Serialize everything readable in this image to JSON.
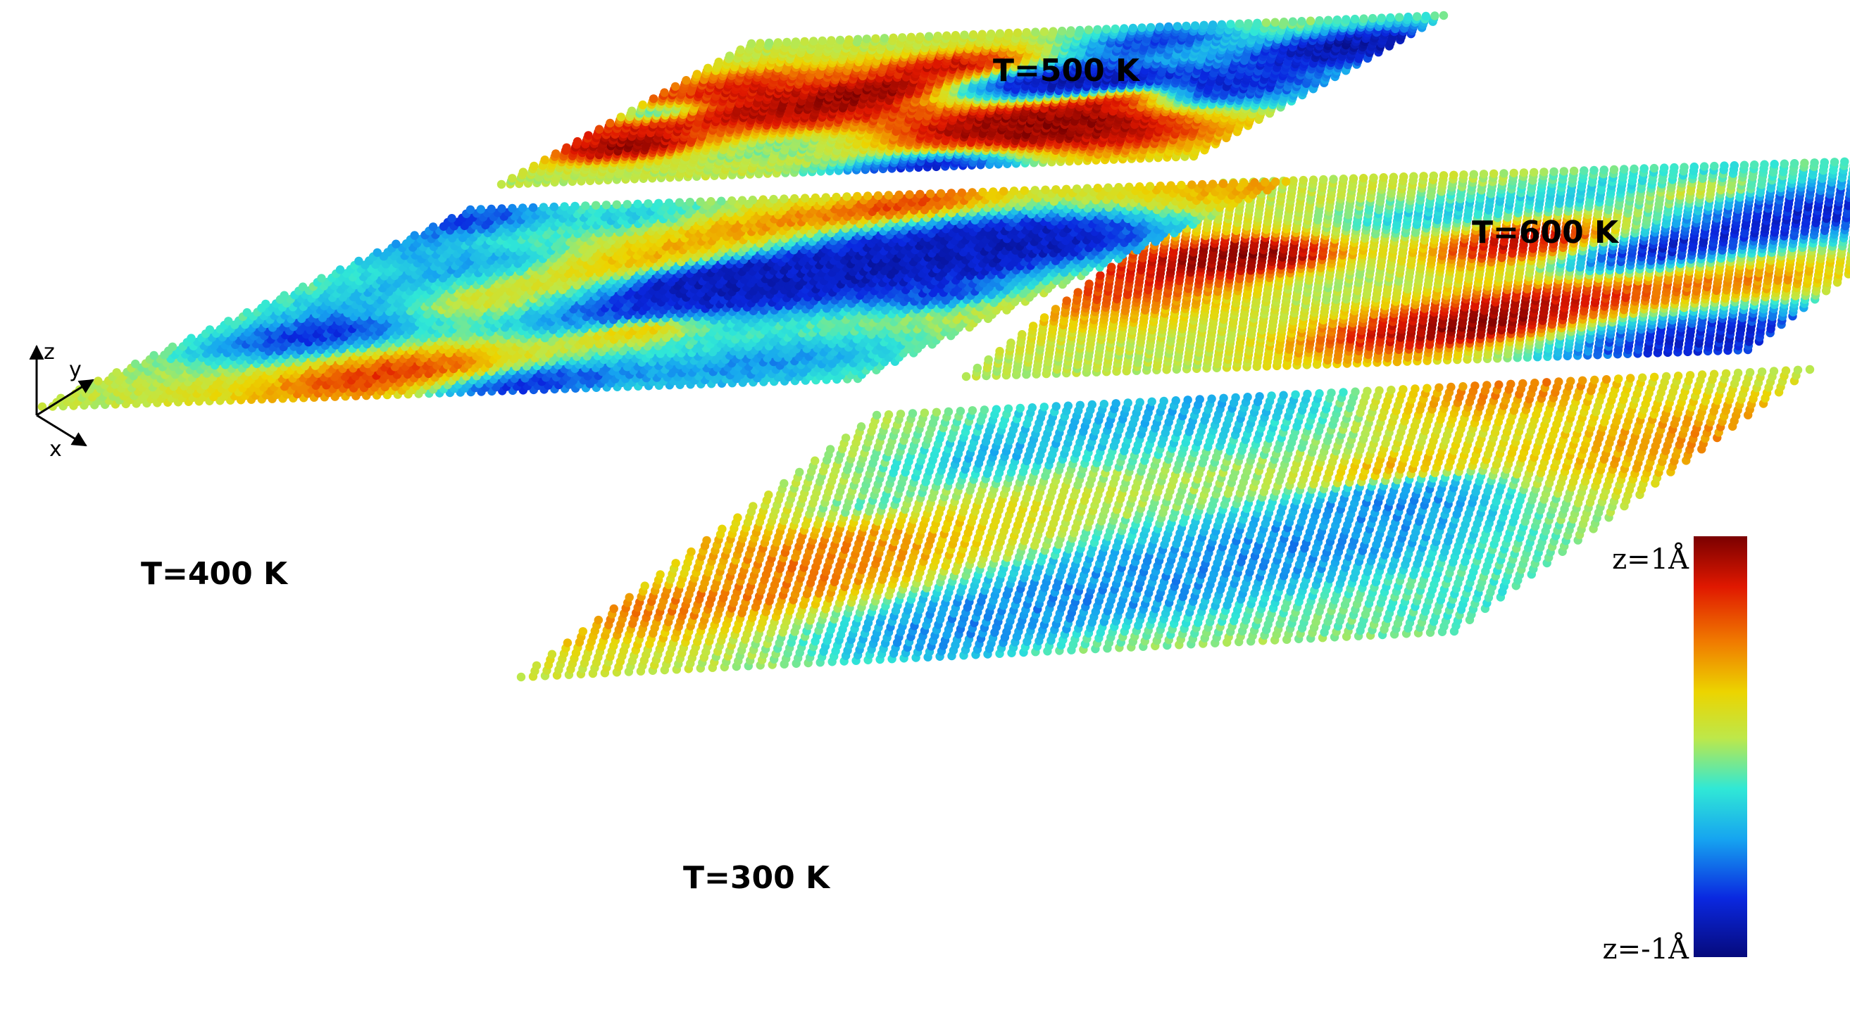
{
  "panels": [
    {
      "id": "t500",
      "label": "T=500 K",
      "temperature_K": 500
    },
    {
      "id": "t600",
      "label": "T=600 K",
      "temperature_K": 600
    },
    {
      "id": "t400",
      "label": "T=400 K",
      "temperature_K": 400
    },
    {
      "id": "t300",
      "label": "T=300 K",
      "temperature_K": 300
    }
  ],
  "axes": {
    "z": "z",
    "y": "y",
    "x": "x"
  },
  "colorbar": {
    "max_label": "z=1Å",
    "min_label": "z=-1Å",
    "colors": [
      "#7a0000",
      "#e01800",
      "#f07a00",
      "#ecd400",
      "#bde84a",
      "#30e8d6",
      "#16a4f0",
      "#0a28e0",
      "#060a7c"
    ]
  }
}
